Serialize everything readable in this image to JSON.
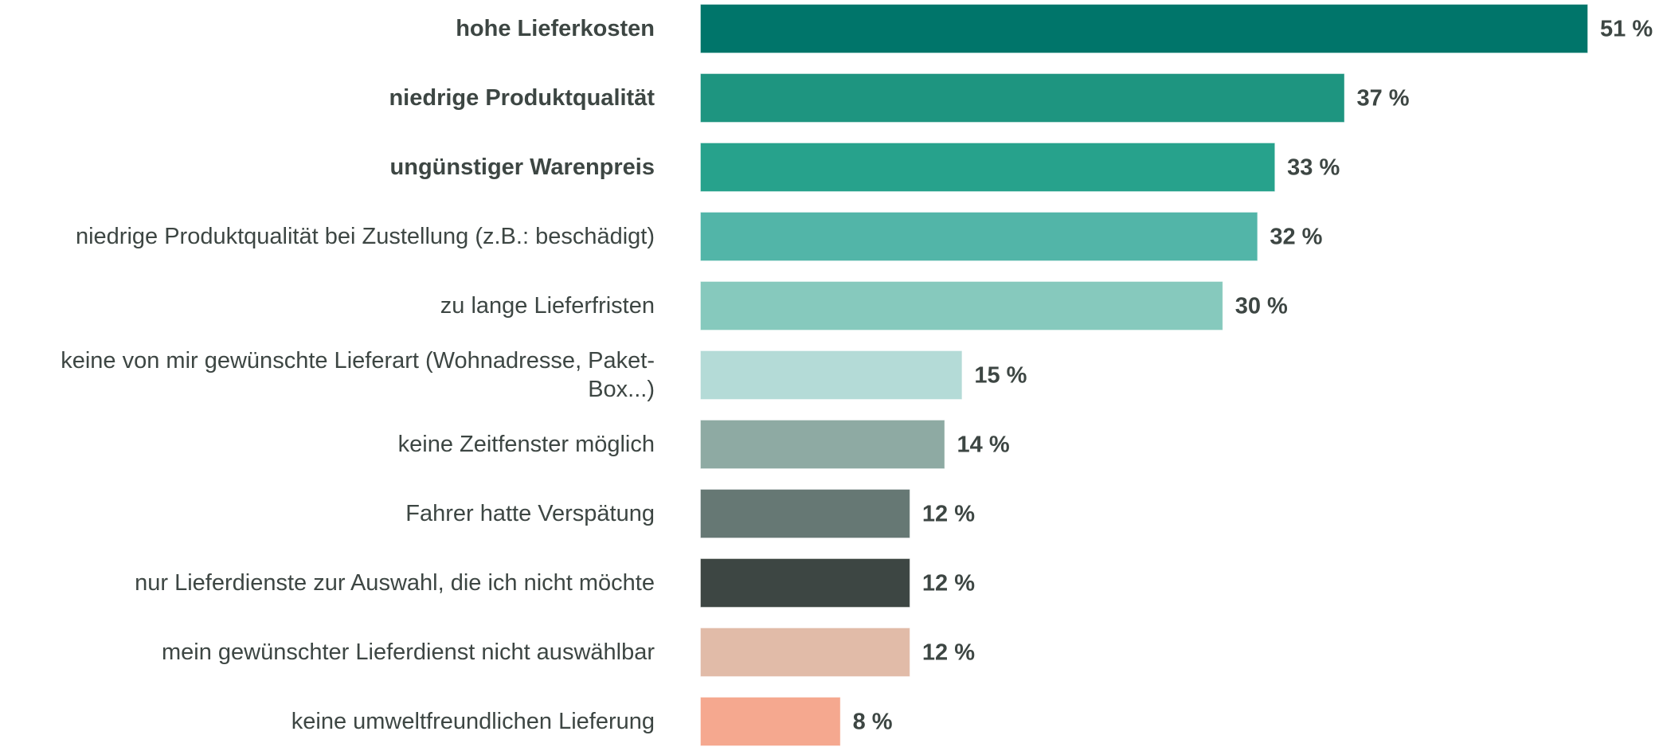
{
  "chart_data": {
    "type": "barh",
    "categories": [
      "hohe Lieferkosten",
      "niedrige Produktqualität",
      "ungünstiger Warenpreis",
      "niedrige Produktqualität bei Zustellung (z.B.: beschädigt)",
      "zu lange Lieferfristen",
      "keine von mir gewünschte Lieferart (Wohnadresse, Paket-Box...)",
      "keine Zeitfenster möglich",
      "Fahrer hatte Verspätung",
      "nur Lieferdienste zur Auswahl, die ich nicht möchte",
      "mein gewünschter Lieferdienst nicht auswählbar",
      "keine umweltfreundlichen Lieferung"
    ],
    "values": [
      51,
      37,
      33,
      32,
      30,
      15,
      14,
      12,
      12,
      12,
      8
    ],
    "value_labels": [
      "51 %",
      "37 %",
      "33 %",
      "32 %",
      "30 %",
      "15 %",
      "14 %",
      "12 %",
      "12 %",
      "12 %",
      "8 %"
    ],
    "colors": [
      "#00756a",
      "#1e9580",
      "#27a28c",
      "#52b5a8",
      "#86c9bd",
      "#b4dbd7",
      "#8eaaa3",
      "#667874",
      "#3d4643",
      "#e1bba8",
      "#f5a88f"
    ],
    "category_bold": [
      true,
      true,
      true,
      false,
      false,
      false,
      false,
      false,
      false,
      false,
      false
    ]
  }
}
